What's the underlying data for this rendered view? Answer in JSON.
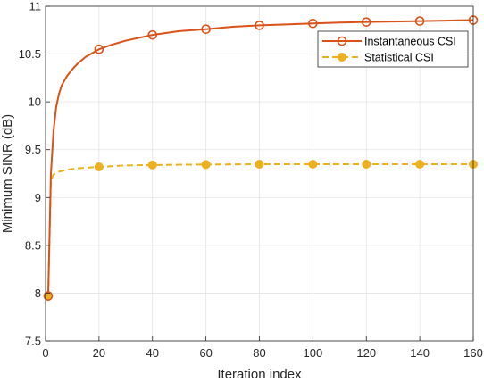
{
  "chart_data": {
    "type": "line",
    "xlabel": "Iteration index",
    "ylabel": "Minimum SINR (dB)",
    "xlim": [
      0,
      160
    ],
    "ylim": [
      7.5,
      11
    ],
    "xticks": [
      "0",
      "20",
      "40",
      "60",
      "80",
      "100",
      "120",
      "140",
      "160"
    ],
    "yticks": [
      "7.5",
      "8",
      "8.5",
      "9",
      "9.5",
      "10",
      "10.5",
      "11"
    ],
    "grid": true,
    "legend_position": "top-right",
    "series": [
      {
        "name": "Instantaneous CSI",
        "color": "#D95319",
        "line_style": "solid",
        "marker": "circle-open",
        "x": [
          1,
          2,
          3,
          4,
          5,
          6,
          8,
          10,
          12,
          15,
          20,
          25,
          30,
          40,
          50,
          60,
          70,
          80,
          90,
          100,
          110,
          120,
          130,
          140,
          150,
          160
        ],
        "y": [
          7.97,
          9.25,
          9.7,
          9.95,
          10.08,
          10.17,
          10.27,
          10.34,
          10.4,
          10.47,
          10.55,
          10.6,
          10.64,
          10.7,
          10.74,
          10.76,
          10.785,
          10.8,
          10.81,
          10.82,
          10.83,
          10.835,
          10.84,
          10.845,
          10.85,
          10.855
        ],
        "marker_x": [
          1,
          20,
          40,
          60,
          80,
          100,
          120,
          140,
          160
        ],
        "marker_y": [
          7.97,
          10.55,
          10.7,
          10.76,
          10.8,
          10.82,
          10.835,
          10.845,
          10.855
        ]
      },
      {
        "name": "Statistical CSI",
        "color": "#EDB120",
        "line_style": "dashed",
        "marker": "circle-filled",
        "x": [
          1,
          2,
          3,
          5,
          8,
          12,
          20,
          30,
          40,
          60,
          80,
          100,
          120,
          140,
          160
        ],
        "y": [
          7.97,
          9.18,
          9.24,
          9.27,
          9.29,
          9.305,
          9.32,
          9.335,
          9.34,
          9.345,
          9.348,
          9.348,
          9.348,
          9.348,
          9.348
        ],
        "marker_x": [
          1,
          20,
          40,
          60,
          80,
          100,
          120,
          140,
          160
        ],
        "marker_y": [
          7.97,
          9.32,
          9.34,
          9.345,
          9.348,
          9.348,
          9.348,
          9.348,
          9.348
        ]
      }
    ]
  }
}
